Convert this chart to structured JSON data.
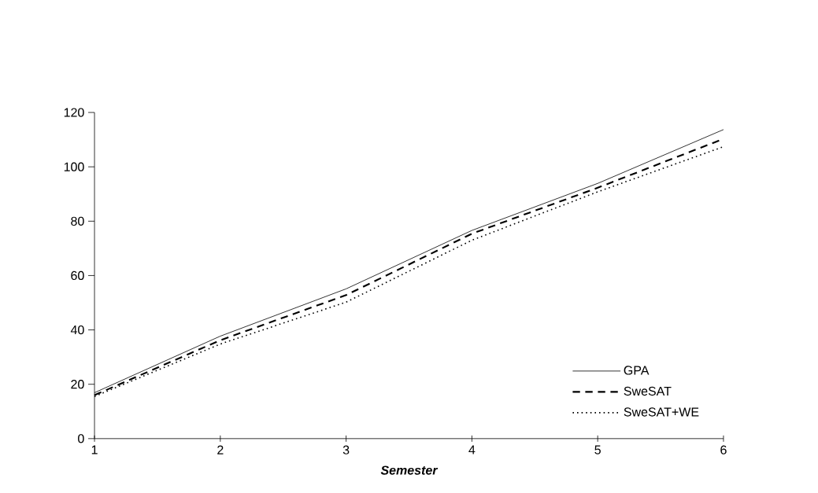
{
  "chart_data": {
    "type": "line",
    "xlabel": "Semester",
    "x": [
      1,
      2,
      3,
      4,
      5,
      6
    ],
    "series": [
      {
        "name": "GPA",
        "color": "#000000",
        "line_style": "solid",
        "values": [
          16.9,
          37.7,
          55.1,
          76.6,
          93.9,
          113.7
        ]
      },
      {
        "name": "SweSAT",
        "color": "#000000",
        "line_style": "dashed",
        "values": [
          16.0,
          36.2,
          52.8,
          75.4,
          92.3,
          110.3
        ]
      },
      {
        "name": "SweSAT+WE",
        "color": "#000000",
        "line_style": "dotted",
        "values": [
          15.5,
          34.8,
          50.2,
          73.0,
          90.8,
          107.4
        ]
      }
    ],
    "xlim": [
      1,
      6
    ],
    "xticks": [
      1,
      2,
      3,
      4,
      5,
      6
    ],
    "ylim": [
      0,
      120
    ],
    "yticks": [
      0,
      20,
      40,
      60,
      80,
      100,
      120
    ],
    "grid": false,
    "legend": "bottom right",
    "marker": "none"
  }
}
